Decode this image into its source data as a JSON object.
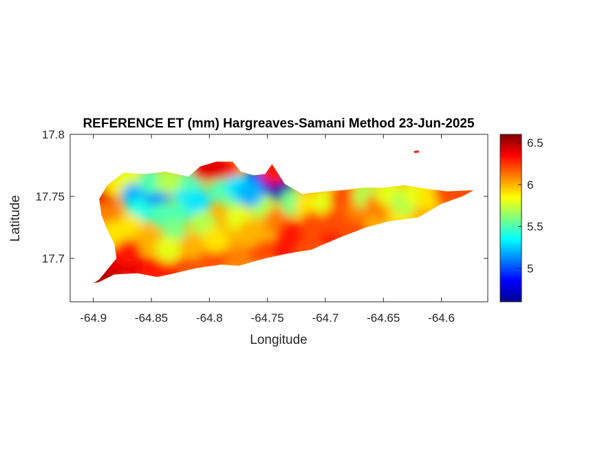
{
  "chart_data": {
    "type": "heatmap",
    "title": "REFERENCE ET (mm) Hargreaves-Samani Method  23-Jun-2025",
    "xlabel": "Longitude",
    "ylabel": "Latitude",
    "xlim": [
      -64.92,
      -64.56
    ],
    "ylim": [
      17.665,
      17.8
    ],
    "x_ticks": [
      -64.9,
      -64.85,
      -64.8,
      -64.75,
      -64.7,
      -64.65,
      -64.6
    ],
    "x_tick_labels": [
      "-64.9",
      "-64.85",
      "-64.8",
      "-64.75",
      "-64.7",
      "-64.65",
      "-64.6"
    ],
    "y_ticks": [
      17.7,
      17.75,
      17.8
    ],
    "y_tick_labels": [
      "17.7",
      "17.75",
      "17.8"
    ],
    "colorbar": {
      "colormap": "jet",
      "range": [
        4.6,
        6.6
      ],
      "ticks": [
        5,
        5.5,
        6,
        6.5
      ],
      "tick_labels": [
        "5",
        "5.5",
        "6",
        "6.5"
      ]
    },
    "island_outline": [
      [
        -64.9,
        17.68
      ],
      [
        -64.895,
        17.683
      ],
      [
        -64.887,
        17.692
      ],
      [
        -64.88,
        17.7
      ],
      [
        -64.882,
        17.712
      ],
      [
        -64.888,
        17.723
      ],
      [
        -64.893,
        17.735
      ],
      [
        -64.895,
        17.748
      ],
      [
        -64.888,
        17.759
      ],
      [
        -64.874,
        17.769
      ],
      [
        -64.855,
        17.768
      ],
      [
        -64.838,
        17.77
      ],
      [
        -64.818,
        17.766
      ],
      [
        -64.808,
        17.774
      ],
      [
        -64.794,
        17.778
      ],
      [
        -64.78,
        17.778
      ],
      [
        -64.773,
        17.77
      ],
      [
        -64.762,
        17.767
      ],
      [
        -64.752,
        17.768
      ],
      [
        -64.746,
        17.776
      ],
      [
        -64.735,
        17.76
      ],
      [
        -64.72,
        17.752
      ],
      [
        -64.7,
        17.754
      ],
      [
        -64.685,
        17.755
      ],
      [
        -64.668,
        17.757
      ],
      [
        -64.65,
        17.757
      ],
      [
        -64.632,
        17.759
      ],
      [
        -64.612,
        17.756
      ],
      [
        -64.595,
        17.754
      ],
      [
        -64.572,
        17.755
      ],
      [
        -64.582,
        17.75
      ],
      [
        -64.6,
        17.744
      ],
      [
        -64.62,
        17.733
      ],
      [
        -64.645,
        17.73
      ],
      [
        -64.665,
        17.725
      ],
      [
        -64.69,
        17.716
      ],
      [
        -64.712,
        17.707
      ],
      [
        -64.732,
        17.704
      ],
      [
        -64.752,
        17.7
      ],
      [
        -64.775,
        17.694
      ],
      [
        -64.79,
        17.695
      ],
      [
        -64.812,
        17.692
      ],
      [
        -64.83,
        17.688
      ],
      [
        -64.845,
        17.685
      ],
      [
        -64.862,
        17.688
      ],
      [
        -64.882,
        17.687
      ],
      [
        -64.895,
        17.681
      ]
    ],
    "samples": [
      [
        -64.895,
        17.682,
        6.5
      ],
      [
        -64.885,
        17.69,
        6.5
      ],
      [
        -64.88,
        17.698,
        6.4
      ],
      [
        -64.865,
        17.693,
        6.4
      ],
      [
        -64.85,
        17.69,
        6.3
      ],
      [
        -64.835,
        17.692,
        6.3
      ],
      [
        -64.815,
        17.697,
        6.2
      ],
      [
        -64.795,
        17.7,
        6.2
      ],
      [
        -64.775,
        17.7,
        6.1
      ],
      [
        -64.755,
        17.705,
        6.2
      ],
      [
        -64.735,
        17.707,
        6.3
      ],
      [
        -64.715,
        17.71,
        6.2
      ],
      [
        -64.695,
        17.718,
        6.3
      ],
      [
        -64.675,
        17.725,
        6.2
      ],
      [
        -64.655,
        17.73,
        6.0
      ],
      [
        -64.635,
        17.735,
        5.9
      ],
      [
        -64.615,
        17.74,
        6.0
      ],
      [
        -64.598,
        17.748,
        6.1
      ],
      [
        -64.58,
        17.753,
        6.2
      ],
      [
        -64.89,
        17.75,
        6.4
      ],
      [
        -64.887,
        17.735,
        6.1
      ],
      [
        -64.882,
        17.72,
        5.9
      ],
      [
        -64.88,
        17.76,
        5.9
      ],
      [
        -64.87,
        17.765,
        5.8
      ],
      [
        -64.865,
        17.75,
        5.2
      ],
      [
        -64.86,
        17.738,
        5.4
      ],
      [
        -64.868,
        17.725,
        5.9
      ],
      [
        -64.855,
        17.715,
        6.0
      ],
      [
        -64.845,
        17.752,
        5.1
      ],
      [
        -64.84,
        17.735,
        5.5
      ],
      [
        -64.83,
        17.722,
        5.6
      ],
      [
        -64.822,
        17.74,
        5.5
      ],
      [
        -64.825,
        17.757,
        5.3
      ],
      [
        -64.815,
        17.762,
        5.5
      ],
      [
        -64.81,
        17.745,
        5.3
      ],
      [
        -64.805,
        17.728,
        5.7
      ],
      [
        -64.795,
        17.715,
        5.9
      ],
      [
        -64.785,
        17.77,
        6.3
      ],
      [
        -64.79,
        17.755,
        5.5
      ],
      [
        -64.778,
        17.748,
        5.6
      ],
      [
        -64.775,
        17.732,
        5.8
      ],
      [
        -64.765,
        17.72,
        6.0
      ],
      [
        -64.76,
        17.762,
        5.0
      ],
      [
        -64.748,
        17.758,
        4.8
      ],
      [
        -64.738,
        17.756,
        4.7
      ],
      [
        -64.745,
        17.77,
        6.3
      ],
      [
        -64.755,
        17.742,
        5.7
      ],
      [
        -64.742,
        17.73,
        6.1
      ],
      [
        -64.728,
        17.745,
        5.6
      ],
      [
        -64.73,
        17.72,
        6.3
      ],
      [
        -64.715,
        17.742,
        5.9
      ],
      [
        -64.71,
        17.728,
        6.2
      ],
      [
        -64.7,
        17.745,
        5.8
      ],
      [
        -64.692,
        17.73,
        6.2
      ],
      [
        -64.685,
        17.748,
        6.2
      ],
      [
        -64.672,
        17.74,
        6.1
      ],
      [
        -64.665,
        17.75,
        5.7
      ],
      [
        -64.655,
        17.742,
        6.1
      ],
      [
        -64.645,
        17.752,
        5.8
      ],
      [
        -64.632,
        17.745,
        5.7
      ],
      [
        -64.622,
        17.752,
        5.8
      ],
      [
        -64.61,
        17.75,
        5.9
      ],
      [
        -64.595,
        17.753,
        6.2
      ],
      [
        -64.85,
        17.762,
        5.5
      ],
      [
        -64.835,
        17.762,
        5.7
      ],
      [
        -64.805,
        17.773,
        6.4
      ],
      [
        -64.795,
        17.773,
        6.4
      ],
      [
        -64.835,
        17.707,
        5.8
      ],
      [
        -64.815,
        17.71,
        6.0
      ],
      [
        -64.87,
        17.705,
        6.3
      ],
      [
        -64.775,
        17.757,
        5.3
      ],
      [
        -64.765,
        17.752,
        5.2
      ]
    ]
  }
}
